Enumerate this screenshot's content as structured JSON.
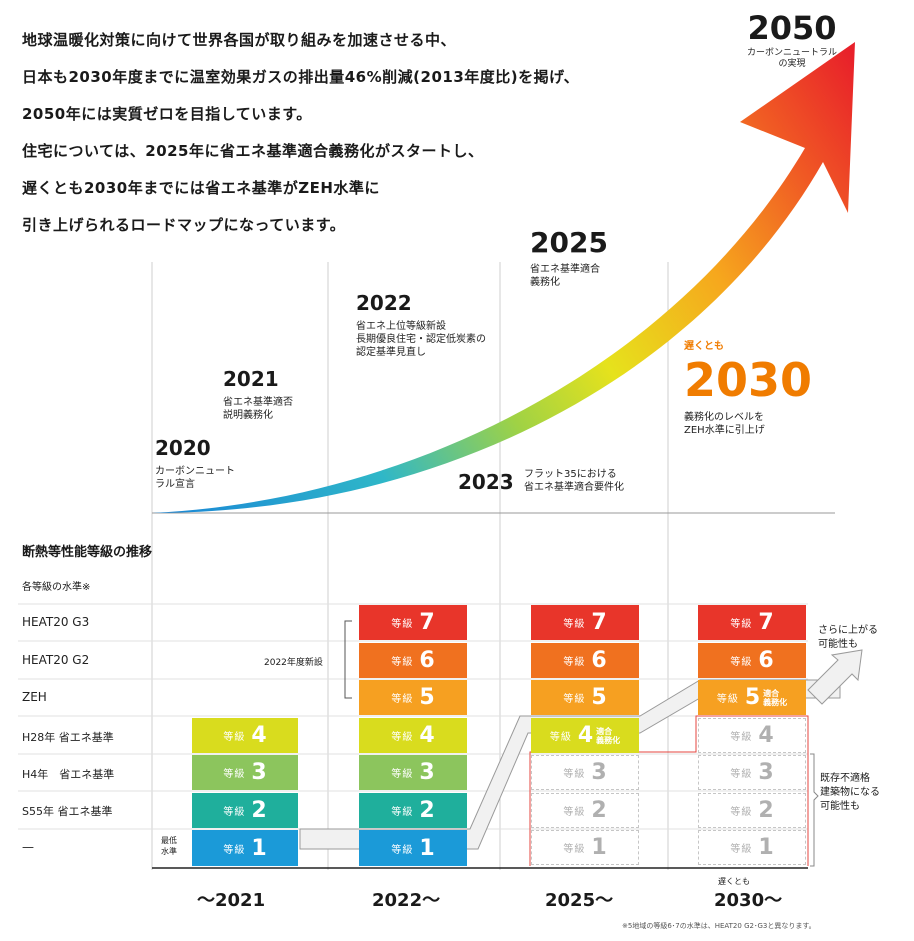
{
  "intro": [
    "地球温暖化対策に向けて世界各国が取り組みを加速させる中、",
    "日本も2030年度までに温室効果ガスの排出量46%削減(2013年度比)を掲げ、",
    "2050年には実質ゼロを目指しています。",
    "住宅については、2025年に省エネ基準適合義務化がスタートし、",
    "遅くとも2030年までには省エネ基準がZEH水準に",
    "引き上げられるロードマップになっています。"
  ],
  "milestones": {
    "y2020": {
      "year": "2020",
      "desc1": "カーボンニュート",
      "desc2": "ラル宣言"
    },
    "y2021": {
      "year": "2021",
      "desc1": "省エネ基準適否",
      "desc2": "説明義務化"
    },
    "y2022": {
      "year": "2022",
      "desc1": "省エネ上位等級新設",
      "desc2": "長期優良住宅・認定低炭素の",
      "desc3": "認定基準見直し"
    },
    "y2023": {
      "year": "2023",
      "desc1": "フラット35における",
      "desc2": "省エネ基準適合要件化"
    },
    "y2025": {
      "year": "2025",
      "desc1": "省エネ基準適合",
      "desc2": "義務化"
    },
    "y2030": {
      "pre": "遅くとも",
      "year": "2030",
      "desc1": "義務化のレベルを",
      "desc2": "ZEH水準に引上げ"
    },
    "y2050": {
      "year": "2050",
      "desc1": "カーボンニュートラル",
      "desc2": "の実現"
    }
  },
  "grades": {
    "title": "断熱等性能等級の推移",
    "subtitle": "各等級の水準※",
    "rows": [
      "HEAT20 G3",
      "HEAT20 G2",
      "ZEH",
      "H28年 省エネ基準",
      "H4年　省エネ基準",
      "S55年 省エネ基準",
      "—"
    ],
    "word": "等級",
    "new_note": "2022年度新設",
    "min_label": [
      "最低",
      "水準"
    ],
    "tag_mandatory": [
      "適合",
      "義務化"
    ],
    "side_note_up": [
      "さらに上がる",
      "可能性も"
    ],
    "side_note_down": [
      "既存不適格",
      "建築物になる",
      "可能性も"
    ],
    "bottom_years": [
      "～2021",
      "2022～",
      "2025～",
      "2030～"
    ],
    "bottom_pre": "遅くとも",
    "footnote": "※5地域の等級6･7の水準は、HEAT20 G2･G3と異なります。",
    "numbers": [
      "7",
      "6",
      "5",
      "4",
      "3",
      "2",
      "1"
    ],
    "colors": {
      "g7": "#e8352a",
      "g6": "#f0711f",
      "g5": "#f6a021",
      "g4": "#d9dc1e",
      "g3": "#8cc55d",
      "g2": "#1faf9c",
      "g1": "#1b9ad8"
    }
  }
}
